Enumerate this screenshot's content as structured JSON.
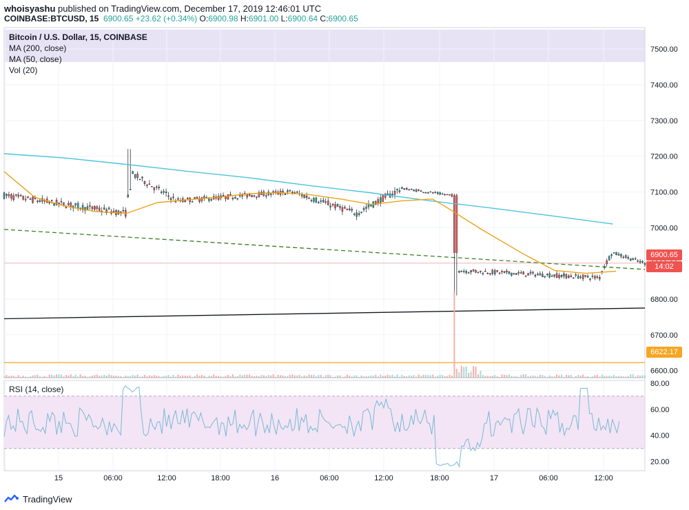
{
  "header": {
    "author": "whoisyashu",
    "published_text": " published on TradingView.com, December 17, 2019 12:46:01 UTC",
    "symbol": "COINBASE:BTCUSD, 15",
    "last": "6900.65",
    "change": "+23.62 (+0.34%)",
    "o_label": "O:",
    "o_value": "6900.98",
    "h_label": "H:",
    "h_value": "6901.00",
    "l_label": "L:",
    "l_value": "6900.64",
    "c_label": "C:",
    "c_value": "6900.65"
  },
  "legend": {
    "title": "Bitcoin / U.S. Dollar, 15, COINBASE",
    "ma200": "MA (200, close)",
    "ma50": "MA (50, close)",
    "vol": "Vol (20)"
  },
  "rsi_label": "RSI (14, close)",
  "footer": {
    "brand": "TradingView"
  },
  "badges": {
    "price": "6900.65",
    "timer": "14:02",
    "level": "6622.17"
  },
  "colors": {
    "up": "#26a69a",
    "down": "#ef5350",
    "ma200": "#4cc3d9",
    "ma50": "#e8a317",
    "trend_dashed": "#3a7d1f",
    "trend_black": "#131722",
    "level_line": "#f5a623",
    "rsi_band": "#f3e5f5",
    "rsi_line": "#7ab8d6"
  },
  "chart_data": {
    "type": "candlestick",
    "price_axis": {
      "min": 6580,
      "max": 7560,
      "ticks": [
        7500,
        7400,
        7300,
        7200,
        7100,
        7000,
        6900,
        6800,
        6700,
        6600
      ]
    },
    "time_labels": [
      "15",
      "06:00",
      "12:00",
      "18:00",
      "16",
      "06:00",
      "12:00",
      "18:00",
      "17",
      "06:00",
      "12:00"
    ],
    "rsi_axis": {
      "min": 13,
      "max": 82,
      "ticks": [
        80,
        60,
        40,
        20
      ],
      "band": [
        30,
        70
      ]
    },
    "last_price": 6900.65,
    "horizontal_level": 6622.17,
    "ma200_points": [
      [
        0,
        7207
      ],
      [
        0.1,
        7195
      ],
      [
        0.2,
        7177
      ],
      [
        0.3,
        7158
      ],
      [
        0.4,
        7140
      ],
      [
        0.5,
        7118
      ],
      [
        0.6,
        7098
      ],
      [
        0.7,
        7075
      ],
      [
        0.8,
        7055
      ],
      [
        0.9,
        7033
      ],
      [
        1.0,
        7010
      ]
    ],
    "ma50_points": [
      [
        0,
        7157
      ],
      [
        0.05,
        7085
      ],
      [
        0.1,
        7060
      ],
      [
        0.15,
        7045
      ],
      [
        0.2,
        7040
      ],
      [
        0.25,
        7070
      ],
      [
        0.3,
        7078
      ],
      [
        0.35,
        7085
      ],
      [
        0.4,
        7095
      ],
      [
        0.45,
        7098
      ],
      [
        0.5,
        7092
      ],
      [
        0.55,
        7080
      ],
      [
        0.6,
        7065
      ],
      [
        0.65,
        7075
      ],
      [
        0.7,
        7080
      ],
      [
        0.72,
        7060
      ],
      [
        0.78,
        6995
      ],
      [
        0.85,
        6925
      ],
      [
        0.9,
        6880
      ],
      [
        0.95,
        6872
      ],
      [
        1.0,
        6878
      ]
    ],
    "trend_dashed": [
      [
        0,
        6995
      ],
      [
        1,
        6883
      ]
    ],
    "trend_black": [
      [
        0,
        6745
      ],
      [
        1,
        6775
      ]
    ],
    "segments": [
      {
        "from": 0.0,
        "to": 0.19,
        "start": 7090,
        "end": 7040,
        "low": 7010,
        "high": 7110
      },
      {
        "from": 0.19,
        "to": 0.2,
        "start": 7040,
        "end": 7155,
        "low": 7030,
        "high": 7220
      },
      {
        "from": 0.2,
        "to": 0.27,
        "start": 7150,
        "end": 7075,
        "low": 7060,
        "high": 7160
      },
      {
        "from": 0.27,
        "to": 0.45,
        "start": 7075,
        "end": 7100,
        "low": 7050,
        "high": 7130
      },
      {
        "from": 0.45,
        "to": 0.55,
        "start": 7100,
        "end": 7040,
        "low": 7020,
        "high": 7115
      },
      {
        "from": 0.55,
        "to": 0.62,
        "start": 7040,
        "end": 7110,
        "low": 7030,
        "high": 7140
      },
      {
        "from": 0.62,
        "to": 0.7,
        "start": 7110,
        "end": 7090,
        "low": 7080,
        "high": 7115
      },
      {
        "from": 0.7,
        "to": 0.71,
        "start": 7090,
        "end": 6900,
        "low": 6805,
        "high": 7095
      },
      {
        "from": 0.71,
        "to": 0.93,
        "start": 6880,
        "end": 6860,
        "low": 6830,
        "high": 6900
      },
      {
        "from": 0.93,
        "to": 0.95,
        "start": 6870,
        "end": 6935,
        "low": 6860,
        "high": 6940
      },
      {
        "from": 0.95,
        "to": 1.0,
        "start": 6930,
        "end": 6900,
        "low": 6880,
        "high": 6935
      }
    ]
  }
}
